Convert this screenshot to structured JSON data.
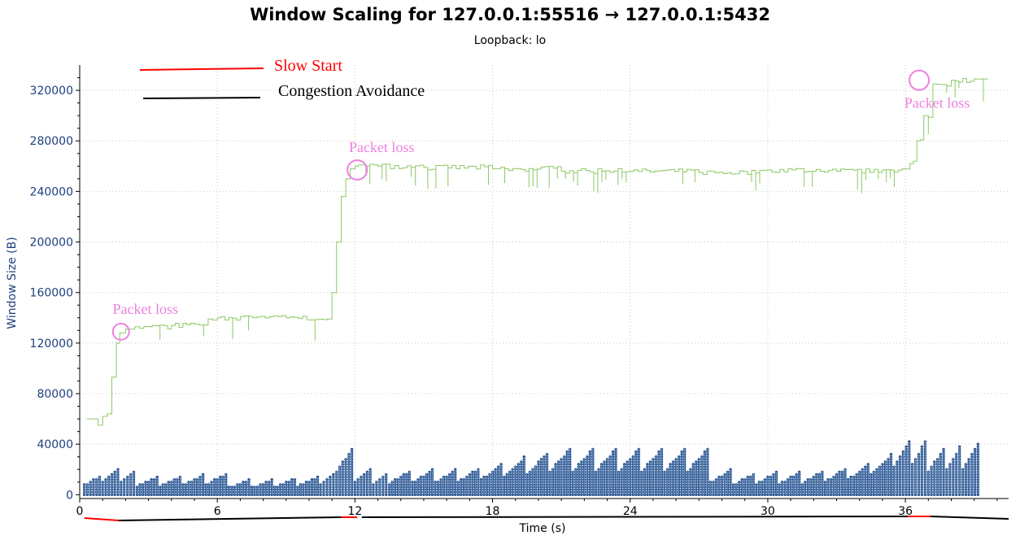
{
  "chart_data": {
    "type": "line",
    "title": "Window Scaling for 127.0.0.1:55516 → 127.0.0.1:5432",
    "subtitle": "Loopback: lo",
    "xlabel": "Time (s)",
    "ylabel": "Window Size (B)",
    "xlim": [
      0,
      40.5
    ],
    "ylim": [
      -3000,
      340000
    ],
    "xticks": [
      0,
      6,
      12,
      18,
      24,
      30,
      36
    ],
    "yticks": [
      0,
      40000,
      80000,
      120000,
      160000,
      200000,
      240000,
      280000,
      320000
    ],
    "grid": true,
    "legend": {
      "placement": "top-left",
      "entries": [
        {
          "label": "Slow  Start",
          "color": "#ff0000"
        },
        {
          "label": "Congestion  Avoidance",
          "color": "#000000"
        }
      ]
    },
    "series": [
      {
        "color": "#8cc866",
        "style": "step",
        "x": [
          0.3,
          0.8,
          1.0,
          1.2,
          1.4,
          1.6,
          1.75,
          2.0,
          2.4,
          3.0,
          4.0,
          5.0,
          5.6,
          6.0,
          7.0,
          9.0,
          10.8,
          11.0,
          11.2,
          11.4,
          11.6,
          11.8,
          12.0,
          12.3,
          13.0,
          15.0,
          18.0,
          21.0,
          24.0,
          27.0,
          30.0,
          33.0,
          35.0,
          36.2,
          36.5,
          36.8,
          37.2,
          38.0,
          39.0,
          39.6
        ],
        "y": [
          60000,
          55000,
          62000,
          64000,
          93000,
          120000,
          128000,
          131000,
          133000,
          133000,
          134000,
          135000,
          139000,
          140000,
          141000,
          140000,
          139000,
          160000,
          200000,
          236000,
          250000,
          258000,
          260000,
          261000,
          260000,
          259000,
          258000,
          256000,
          256000,
          255000,
          257000,
          256000,
          257000,
          262000,
          280000,
          300000,
          325000,
          328000,
          329000,
          329000
        ]
      },
      {
        "color": "#1f4e8c",
        "style": "sawtooth-points",
        "x": [
          0.2,
          1.0,
          1.8,
          2.5,
          3.5,
          4.5,
          5.5,
          6.5,
          7.5,
          8.5,
          9.5,
          10.5,
          11.2,
          12.0,
          12.8,
          13.5,
          14.5,
          15.5,
          16.5,
          17.5,
          18.5,
          19.5,
          20.5,
          21.5,
          22.5,
          23.5,
          24.5,
          25.5,
          26.5,
          27.5,
          28.5,
          29.5,
          30.5,
          31.5,
          32.5,
          33.5,
          34.5,
          35.5,
          36.3,
          37.0,
          37.8,
          38.5,
          39.3
        ],
        "y": [
          15000,
          20000,
          19000,
          14000,
          15000,
          16000,
          17000,
          12000,
          12000,
          13000,
          14000,
          16000,
          36000,
          20000,
          17000,
          19000,
          20000,
          20000,
          21000,
          24000,
          30000,
          33000,
          37000,
          37000,
          37000,
          37000,
          37000,
          37000,
          37000,
          20000,
          17000,
          18000,
          18000,
          19000,
          21000,
          24000,
          32000,
          42000,
          43000,
          36000,
          38000,
          40000,
          23000
        ]
      }
    ],
    "annotations": [
      {
        "text": "Packet  loss",
        "x": 1.8,
        "y": 129000
      },
      {
        "text": "Packet  loss",
        "x": 12.1,
        "y": 257000
      },
      {
        "text": "Packet  loss",
        "x": 36.6,
        "y": 328000
      }
    ]
  }
}
